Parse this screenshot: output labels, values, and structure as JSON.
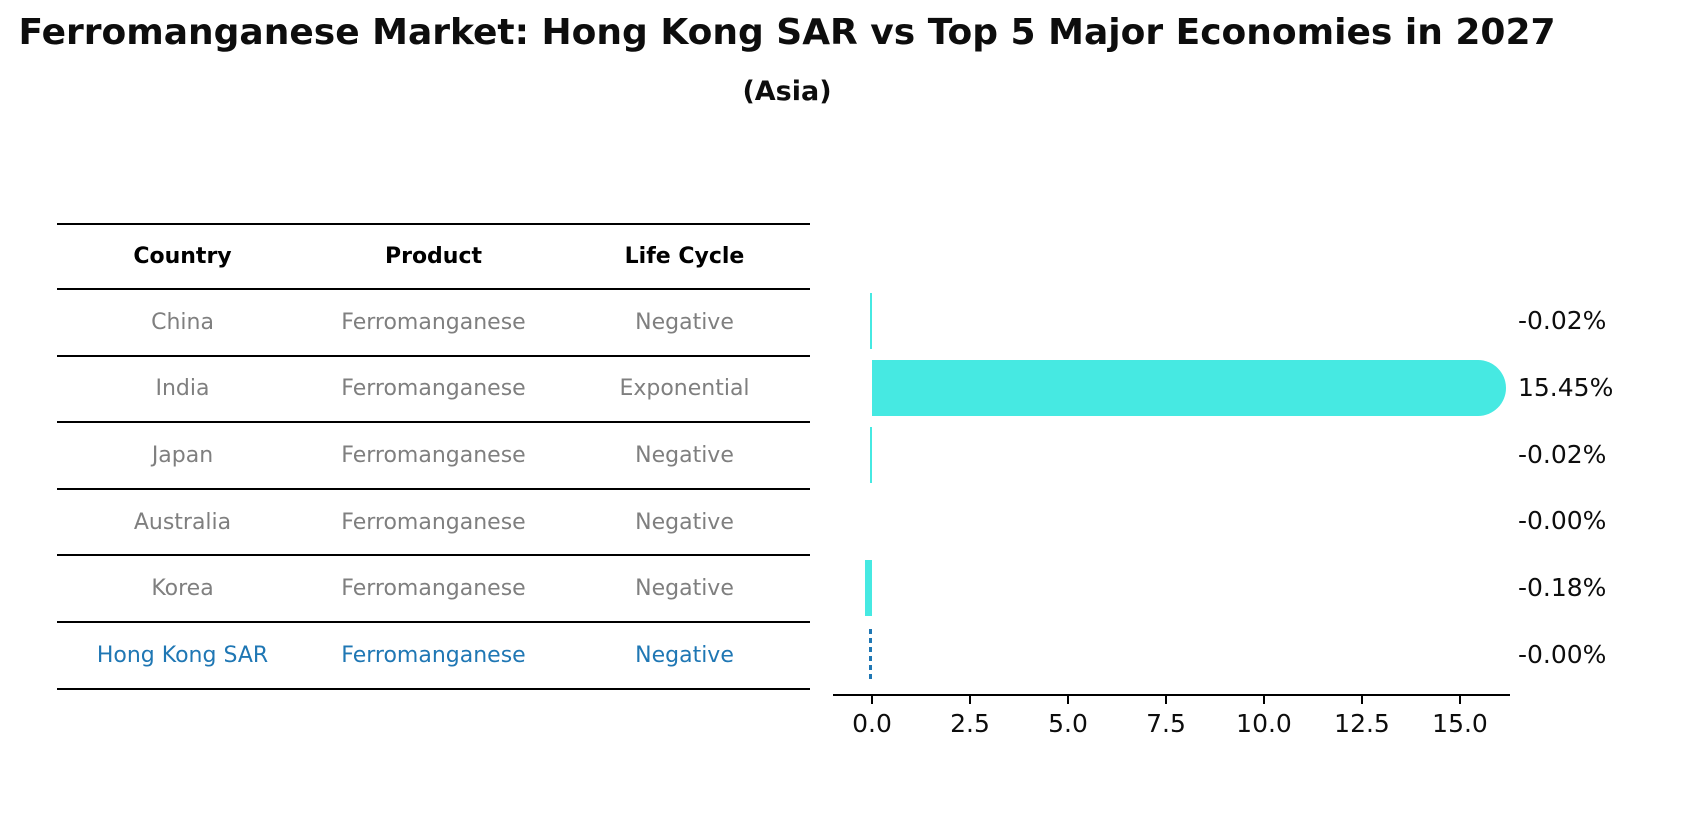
{
  "title": "Ferromanganese Market: Hong Kong SAR vs Top 5 Major Economies in 2027",
  "subtitle": "(Asia)",
  "table": {
    "headers": [
      "Country",
      "Product",
      "Life Cycle"
    ],
    "rows": [
      {
        "country": "China",
        "product": "Ferromanganese",
        "life_cycle": "Negative"
      },
      {
        "country": "India",
        "product": "Ferromanganese",
        "life_cycle": "Exponential"
      },
      {
        "country": "Japan",
        "product": "Ferromanganese",
        "life_cycle": "Negative"
      },
      {
        "country": "Australia",
        "product": "Ferromanganese",
        "life_cycle": "Negative"
      },
      {
        "country": "Korea",
        "product": "Ferromanganese",
        "life_cycle": "Negative"
      },
      {
        "country": "Hong Kong SAR",
        "product": "Ferromanganese",
        "life_cycle": "Negative"
      }
    ]
  },
  "chart_data": {
    "type": "bar",
    "orientation": "horizontal",
    "categories": [
      "China",
      "India",
      "Japan",
      "Australia",
      "Korea",
      "Hong Kong SAR"
    ],
    "values": [
      -0.02,
      15.45,
      -0.02,
      -0.0,
      -0.18,
      -0.0
    ],
    "value_labels": [
      "-0.02%",
      "15.45%",
      "-0.02%",
      "-0.00%",
      "-0.18%",
      "-0.00%"
    ],
    "bar_styles": [
      "solid",
      "solid",
      "solid",
      "none",
      "solid",
      "dashed-outline"
    ],
    "x_ticks": [
      "0.0",
      "2.5",
      "5.0",
      "7.5",
      "10.0",
      "12.5",
      "15.0"
    ],
    "x_tick_values": [
      0,
      2.5,
      5,
      7.5,
      10,
      12.5,
      15
    ],
    "xlim": [
      -1,
      16.2
    ],
    "xlabel": "",
    "ylabel": "",
    "grid": false,
    "legend": false,
    "bar_color": "#46E9E2",
    "highlight_color": "#1f77b4"
  }
}
